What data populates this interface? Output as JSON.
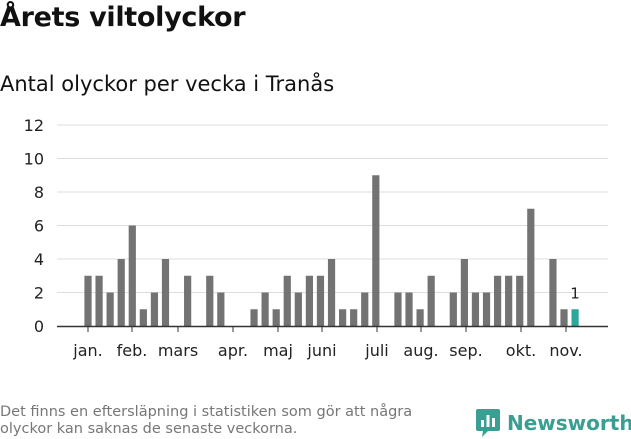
{
  "header": {
    "title": "Årets viltolyckor",
    "subtitle": "Antal olyckor per vecka i Tranås"
  },
  "footer": {
    "note": "Det finns en eftersläpning i statistiken som gör att några olyckor kan saknas de senaste veckorna.",
    "brand": "Newsworthy",
    "brand_icon": "newsworthy-logo-icon",
    "brand_color": "#3a9e92"
  },
  "chart_data": {
    "type": "bar",
    "x": [
      2,
      3,
      4,
      5,
      6,
      7,
      8,
      9,
      10,
      11,
      12,
      13,
      14,
      15,
      16,
      17,
      18,
      19,
      20,
      21,
      22,
      23,
      24,
      25,
      26,
      27,
      28,
      29,
      30,
      31,
      32,
      33,
      34,
      35,
      36,
      37,
      38,
      39,
      40,
      41,
      42,
      43,
      44,
      45,
      46
    ],
    "values": [
      3,
      3,
      2,
      4,
      6,
      1,
      2,
      4,
      0,
      3,
      0,
      3,
      2,
      0,
      0,
      1,
      2,
      1,
      3,
      2,
      3,
      3,
      4,
      1,
      1,
      2,
      9,
      0,
      2,
      2,
      1,
      3,
      0,
      2,
      4,
      2,
      2,
      3,
      3,
      3,
      7,
      0,
      4,
      1,
      1
    ],
    "ylim": [
      0,
      12
    ],
    "yticks": [
      0,
      2,
      4,
      6,
      8,
      10,
      12
    ],
    "month_labels": [
      "jan.",
      "feb.",
      "mars",
      "apr.",
      "maj",
      "juni",
      "juli",
      "aug.",
      "sep.",
      "okt.",
      "nov."
    ],
    "annotations": [
      {
        "x": 46,
        "text": "1"
      }
    ],
    "grid": true,
    "legend": "none",
    "colors": {
      "bar": "#737373",
      "highlight": "#2ca89a",
      "grid": "#dddddd",
      "axis": "#333333"
    }
  }
}
